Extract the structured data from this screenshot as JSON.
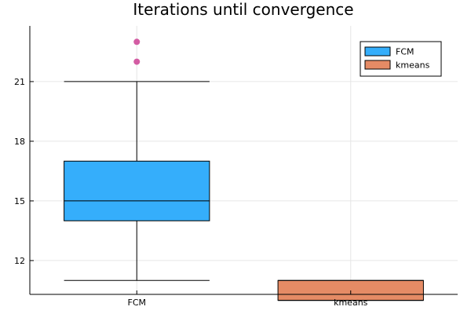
{
  "chart_data": {
    "type": "boxplot",
    "title": "Iterations until convergence",
    "xlabel": "",
    "ylabel": "",
    "categories": [
      "FCM",
      "kmeans"
    ],
    "ylim": [
      10.3,
      23.8
    ],
    "yticks": [
      12,
      15,
      18,
      21
    ],
    "grid": true,
    "legend_position": "top-right",
    "series": [
      {
        "name": "FCM",
        "color": "#35aefb",
        "whisker_low": 11,
        "q1": 14,
        "median": 15,
        "q3": 17,
        "whisker_high": 21,
        "outliers": [
          22,
          23
        ]
      },
      {
        "name": "kmeans",
        "color": "#e58b65",
        "whisker_low": 10,
        "q1": 10,
        "median": 10,
        "q3": 11,
        "whisker_high": 11,
        "outliers": []
      }
    ],
    "outlier_color": "#d35ca3"
  }
}
